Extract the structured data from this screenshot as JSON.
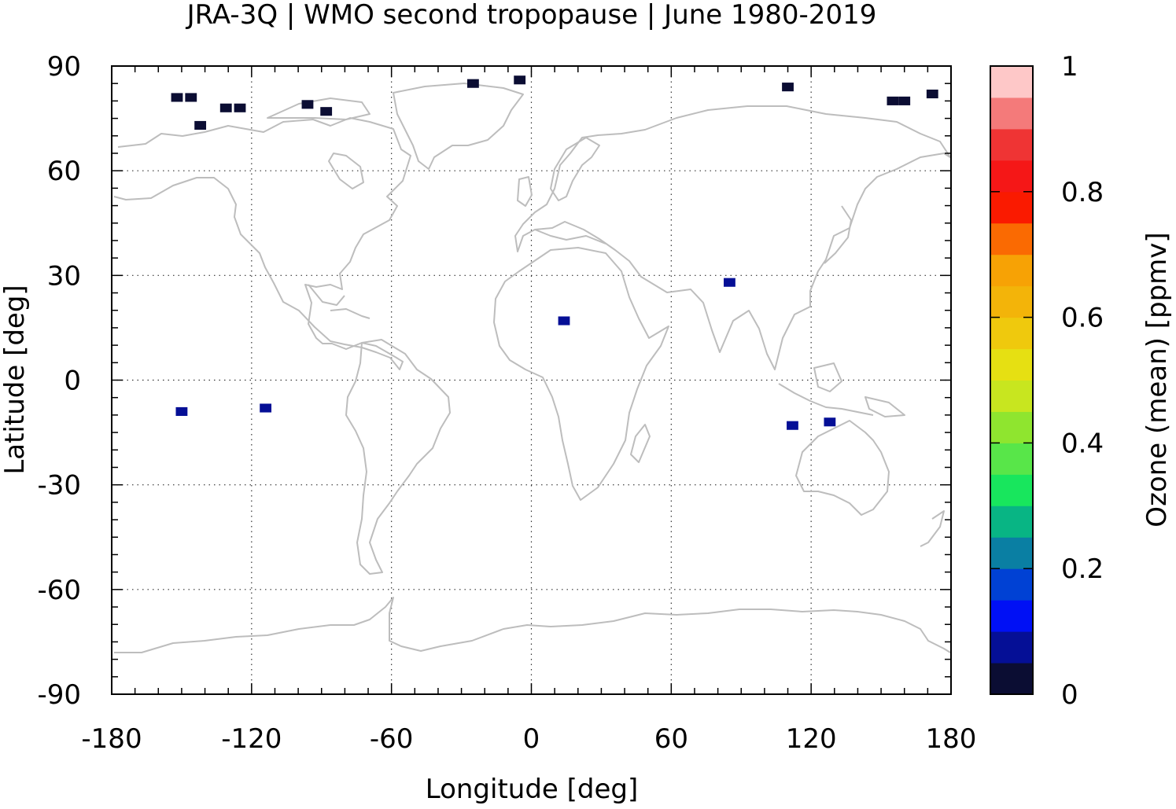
{
  "chart_data": {
    "type": "heatmap",
    "title": "JRA-3Q | WMO second tropopause | June 1980-2019",
    "xlabel": "Longitude [deg]",
    "ylabel": "Latitude [deg]",
    "xlim": [
      -180,
      180
    ],
    "ylim": [
      -90,
      90
    ],
    "xticks": [
      -180,
      -120,
      -60,
      0,
      60,
      120,
      180
    ],
    "xtick_labels": [
      "-180",
      "-120",
      "-60",
      "0",
      "60",
      "120",
      "180"
    ],
    "yticks": [
      90,
      60,
      30,
      0,
      -30,
      -60,
      -90
    ],
    "ytick_labels": [
      "90",
      "60",
      "30",
      "0",
      "-30",
      "-60",
      "-90"
    ],
    "grid": true,
    "colorbar": {
      "label": "Ozone (mean) [ppmv]",
      "range": [
        0,
        1
      ],
      "ticks": [
        0,
        0.2,
        0.4,
        0.6,
        0.8,
        1
      ],
      "tick_labels": [
        "0",
        "0.2",
        "0.4",
        "0.6",
        "0.8",
        "1"
      ],
      "colors": [
        "#0b0d33",
        "#050f96",
        "#0010f5",
        "#0041d4",
        "#0a7fa3",
        "#08b584",
        "#18e65d",
        "#58e649",
        "#8fe52f",
        "#c8e61f",
        "#e6e012",
        "#efc90d",
        "#f3b409",
        "#f7a205",
        "#fa6a02",
        "#fa1a00",
        "#f51717",
        "#ef3434",
        "#f47a7a",
        "#fec8c8"
      ]
    },
    "cells": [
      {
        "lon": -152,
        "lat": 81,
        "value": 0.02
      },
      {
        "lon": -146,
        "lat": 81,
        "value": 0.02
      },
      {
        "lon": -131,
        "lat": 78,
        "value": 0.02
      },
      {
        "lon": -125,
        "lat": 78,
        "value": 0.02
      },
      {
        "lon": -142,
        "lat": 73,
        "value": 0.03
      },
      {
        "lon": -96,
        "lat": 79,
        "value": 0.03
      },
      {
        "lon": -88,
        "lat": 77,
        "value": 0.03
      },
      {
        "lon": -25,
        "lat": 85,
        "value": 0.03
      },
      {
        "lon": -5,
        "lat": 86,
        "value": 0.03
      },
      {
        "lon": 110,
        "lat": 84,
        "value": 0.03
      },
      {
        "lon": 155,
        "lat": 80,
        "value": 0.02
      },
      {
        "lon": 160,
        "lat": 80,
        "value": 0.02
      },
      {
        "lon": 172,
        "lat": 82,
        "value": 0.03
      },
      {
        "lon": 85,
        "lat": 28,
        "value": 0.05
      },
      {
        "lon": 14,
        "lat": 17,
        "value": 0.05
      },
      {
        "lon": -150,
        "lat": -9,
        "value": 0.05
      },
      {
        "lon": -114,
        "lat": -8,
        "value": 0.05
      },
      {
        "lon": 112,
        "lat": -13,
        "value": 0.05
      },
      {
        "lon": 128,
        "lat": -12,
        "value": 0.05
      }
    ]
  }
}
